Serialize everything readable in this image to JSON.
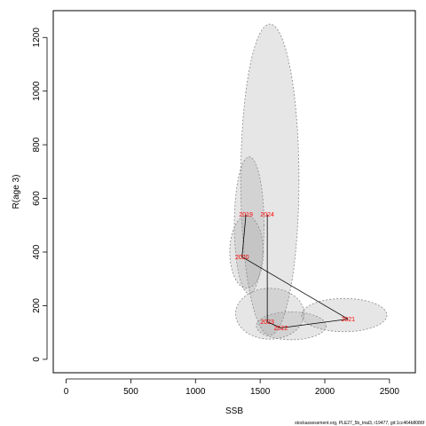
{
  "chart_data": {
    "type": "scatter",
    "xlabel": "SSB",
    "ylabel": "R(age 3)",
    "xlim": [
      -100,
      2700
    ],
    "ylim": [
      -50,
      1300
    ],
    "x_ticks": [
      0,
      500,
      1000,
      1500,
      2000,
      2500
    ],
    "y_ticks": [
      0,
      200,
      400,
      600,
      800,
      1000,
      1200
    ],
    "grid": false,
    "points": [
      {
        "label": "2019",
        "x": 1390,
        "y": 540
      },
      {
        "label": "2020",
        "x": 1360,
        "y": 382
      },
      {
        "label": "2021",
        "x": 2180,
        "y": 150
      },
      {
        "label": "2022",
        "x": 1660,
        "y": 117
      },
      {
        "label": "2023",
        "x": 1555,
        "y": 140
      },
      {
        "label": "2024",
        "x": 1555,
        "y": 540
      }
    ],
    "path_order": [
      "2019",
      "2020",
      "2021",
      "2022",
      "2023",
      "2024"
    ],
    "confidence_ellipses": [
      {
        "label": "2019",
        "cx": 1415,
        "cy": 500,
        "rx": 115,
        "ry": 255
      },
      {
        "label": "2020",
        "cx": 1395,
        "cy": 400,
        "rx": 130,
        "ry": 135
      },
      {
        "label": "2021",
        "cx": 2150,
        "cy": 165,
        "rx": 330,
        "ry": 62
      },
      {
        "label": "2022",
        "cx": 1740,
        "cy": 125,
        "rx": 270,
        "ry": 52
      },
      {
        "label": "2023",
        "cx": 1575,
        "cy": 170,
        "rx": 265,
        "ry": 95
      },
      {
        "label": "2024",
        "cx": 1575,
        "cy": 670,
        "rx": 225,
        "ry": 580
      }
    ],
    "colors": {
      "point_label": "#ff0000",
      "ellipse_fill": "#9a9a9a",
      "ellipse_stroke": "#888888",
      "path": "#000000"
    }
  },
  "footnote": "stockassessment.org, PLE27_5b_trial3, r19477, git:1cc464b8086f"
}
